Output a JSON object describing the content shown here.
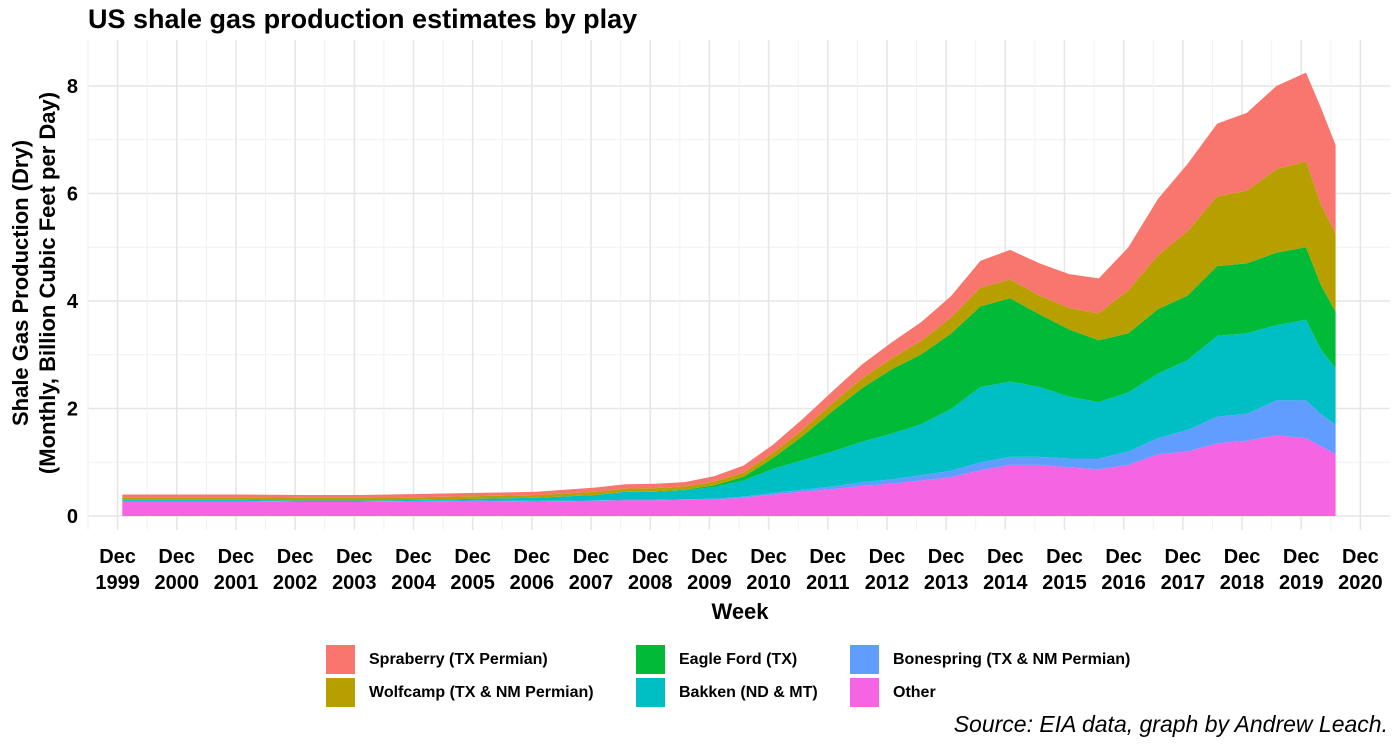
{
  "chart_data": {
    "type": "area",
    "stacked": true,
    "title": "US shale gas production estimates by play",
    "xlabel": "Week",
    "ylabel_line1": "Shale Gas Production (Dry)",
    "ylabel_line2": "(Monthly, Billion Cubic Feet per Day)",
    "caption": "Source: EIA data, graph by Andrew Leach.",
    "ylim": [
      0,
      8.6
    ],
    "y_ticks": [
      0,
      2,
      4,
      6,
      8
    ],
    "x_ticks": [
      {
        "t": 1999.92,
        "line1": "Dec",
        "line2": "1999"
      },
      {
        "t": 2000.92,
        "line1": "Dec",
        "line2": "2000"
      },
      {
        "t": 2001.92,
        "line1": "Dec",
        "line2": "2001"
      },
      {
        "t": 2002.92,
        "line1": "Dec",
        "line2": "2002"
      },
      {
        "t": 2003.92,
        "line1": "Dec",
        "line2": "2003"
      },
      {
        "t": 2004.92,
        "line1": "Dec",
        "line2": "2004"
      },
      {
        "t": 2005.92,
        "line1": "Dec",
        "line2": "2005"
      },
      {
        "t": 2006.92,
        "line1": "Dec",
        "line2": "2006"
      },
      {
        "t": 2007.92,
        "line1": "Dec",
        "line2": "2007"
      },
      {
        "t": 2008.92,
        "line1": "Dec",
        "line2": "2008"
      },
      {
        "t": 2009.92,
        "line1": "Dec",
        "line2": "2009"
      },
      {
        "t": 2010.92,
        "line1": "Dec",
        "line2": "2010"
      },
      {
        "t": 2011.92,
        "line1": "Dec",
        "line2": "2011"
      },
      {
        "t": 2012.92,
        "line1": "Dec",
        "line2": "2012"
      },
      {
        "t": 2013.92,
        "line1": "Dec",
        "line2": "2013"
      },
      {
        "t": 2014.92,
        "line1": "Dec",
        "line2": "2014"
      },
      {
        "t": 2015.92,
        "line1": "Dec",
        "line2": "2015"
      },
      {
        "t": 2016.92,
        "line1": "Dec",
        "line2": "2016"
      },
      {
        "t": 2017.92,
        "line1": "Dec",
        "line2": "2017"
      },
      {
        "t": 2018.92,
        "line1": "Dec",
        "line2": "2018"
      },
      {
        "t": 2019.92,
        "line1": "Dec",
        "line2": "2019"
      },
      {
        "t": 2020.92,
        "line1": "Dec",
        "line2": "2020"
      }
    ],
    "x": [
      2000.0,
      2001.0,
      2002.0,
      2003.0,
      2004.0,
      2005.0,
      2006.0,
      2007.0,
      2008.0,
      2008.5,
      2009.0,
      2009.5,
      2010.0,
      2010.5,
      2011.0,
      2011.5,
      2012.0,
      2012.5,
      2013.0,
      2013.5,
      2014.0,
      2014.5,
      2015.0,
      2015.5,
      2016.0,
      2016.5,
      2017.0,
      2017.5,
      2018.0,
      2018.5,
      2019.0,
      2019.5,
      2020.0,
      2020.25,
      2020.5
    ],
    "series": [
      {
        "name": "Other",
        "color": "#F564E3",
        "values": [
          0.27,
          0.27,
          0.27,
          0.26,
          0.26,
          0.27,
          0.28,
          0.27,
          0.28,
          0.29,
          0.29,
          0.3,
          0.3,
          0.34,
          0.4,
          0.45,
          0.5,
          0.56,
          0.6,
          0.66,
          0.72,
          0.85,
          0.95,
          0.95,
          0.9,
          0.87,
          0.95,
          1.15,
          1.2,
          1.35,
          1.4,
          1.5,
          1.45,
          1.3,
          1.15
        ]
      },
      {
        "name": "Bonespring (TX & NM Permian)",
        "color": "#619CFF",
        "values": [
          0.01,
          0.01,
          0.01,
          0.01,
          0.01,
          0.01,
          0.01,
          0.01,
          0.01,
          0.01,
          0.01,
          0.01,
          0.02,
          0.02,
          0.03,
          0.04,
          0.05,
          0.07,
          0.08,
          0.1,
          0.12,
          0.15,
          0.15,
          0.15,
          0.17,
          0.2,
          0.25,
          0.3,
          0.4,
          0.5,
          0.5,
          0.65,
          0.7,
          0.6,
          0.55
        ]
      },
      {
        "name": "Bakken (ND & MT)",
        "color": "#00BFC4",
        "values": [
          0.02,
          0.02,
          0.02,
          0.02,
          0.02,
          0.02,
          0.03,
          0.06,
          0.1,
          0.15,
          0.15,
          0.17,
          0.22,
          0.3,
          0.45,
          0.55,
          0.65,
          0.75,
          0.85,
          0.95,
          1.15,
          1.4,
          1.4,
          1.3,
          1.15,
          1.05,
          1.1,
          1.2,
          1.3,
          1.5,
          1.5,
          1.4,
          1.5,
          1.2,
          1.05
        ]
      },
      {
        "name": "Eagle Ford (TX)",
        "color": "#00BA38",
        "values": [
          0.0,
          0.0,
          0.0,
          0.0,
          0.0,
          0.0,
          0.0,
          0.0,
          0.0,
          0.0,
          0.01,
          0.01,
          0.03,
          0.07,
          0.2,
          0.45,
          0.75,
          1.0,
          1.2,
          1.3,
          1.4,
          1.5,
          1.55,
          1.35,
          1.25,
          1.15,
          1.1,
          1.2,
          1.2,
          1.3,
          1.3,
          1.35,
          1.35,
          1.2,
          1.05
        ]
      },
      {
        "name": "Wolfcamp (TX & NM Permian)",
        "color": "#B79F00",
        "values": [
          0.05,
          0.05,
          0.05,
          0.05,
          0.05,
          0.05,
          0.05,
          0.05,
          0.06,
          0.06,
          0.06,
          0.06,
          0.07,
          0.08,
          0.1,
          0.12,
          0.15,
          0.18,
          0.2,
          0.25,
          0.3,
          0.35,
          0.35,
          0.35,
          0.4,
          0.5,
          0.8,
          1.0,
          1.2,
          1.3,
          1.35,
          1.55,
          1.6,
          1.5,
          1.45
        ]
      },
      {
        "name": "Spraberry (TX Permian)",
        "color": "#F8766D",
        "values": [
          0.05,
          0.05,
          0.05,
          0.05,
          0.05,
          0.06,
          0.06,
          0.06,
          0.08,
          0.08,
          0.08,
          0.08,
          0.1,
          0.13,
          0.15,
          0.2,
          0.22,
          0.26,
          0.3,
          0.35,
          0.4,
          0.5,
          0.55,
          0.6,
          0.63,
          0.65,
          0.8,
          1.05,
          1.25,
          1.35,
          1.45,
          1.55,
          1.65,
          1.8,
          1.65
        ]
      }
    ],
    "legend_order": [
      "Spraberry (TX Permian)",
      "Wolfcamp (TX & NM Permian)",
      "Eagle Ford (TX)",
      "Bakken (ND & MT)",
      "Bonespring (TX & NM Permian)",
      "Other"
    ],
    "grid": true,
    "legend_position": "bottom"
  }
}
